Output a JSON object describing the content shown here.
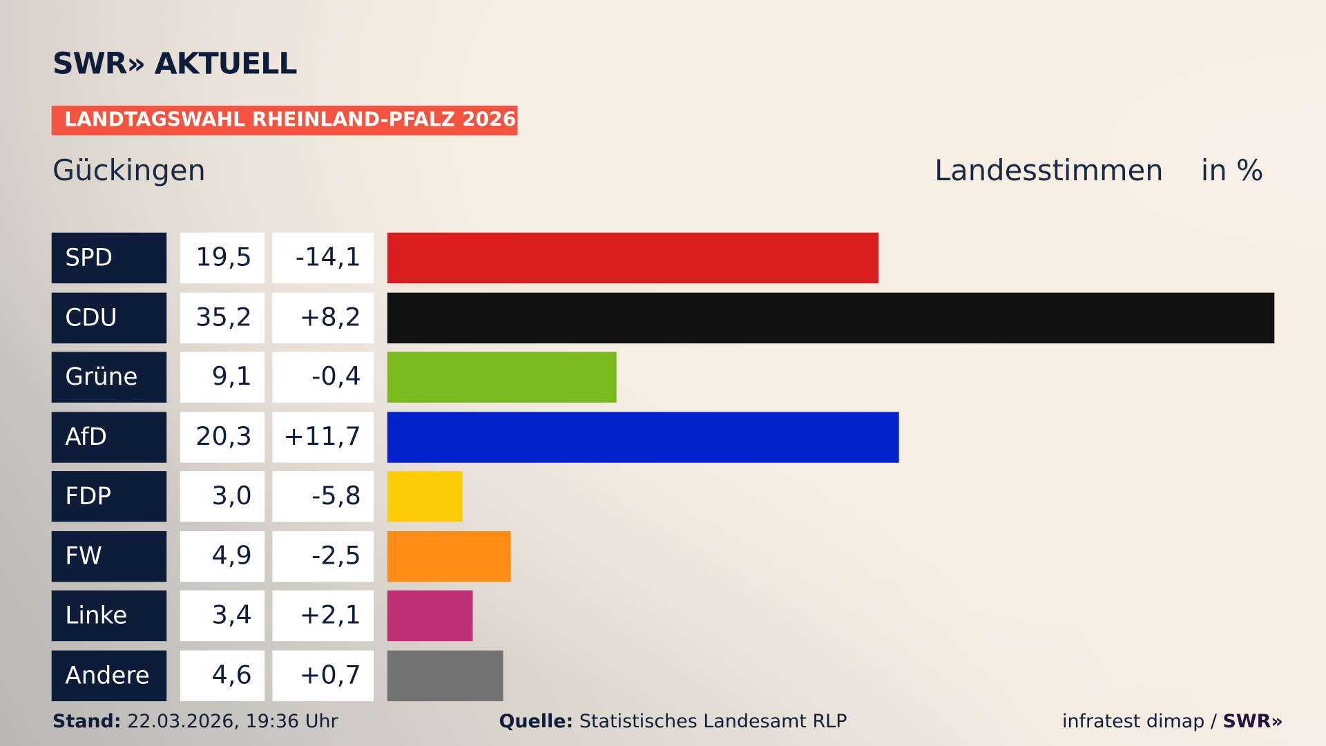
{
  "header": {
    "logo": "SWR» AKTUELL",
    "banner": "LANDTAGSWAHL RHEINLAND-PFALZ 2026",
    "place": "Gückingen",
    "measure": "Landesstimmen",
    "unit": "in %"
  },
  "chart_data": {
    "type": "bar",
    "orientation": "horizontal",
    "categories": [
      "SPD",
      "CDU",
      "Grüne",
      "AfD",
      "FDP",
      "FW",
      "Linke",
      "Andere"
    ],
    "values": [
      19.5,
      35.2,
      9.1,
      20.3,
      3.0,
      4.9,
      3.4,
      4.6
    ],
    "value_labels": [
      "19,5",
      "35,2",
      "9,1",
      "20,3",
      "3,0",
      "4,9",
      "3,4",
      "4,6"
    ],
    "diff_labels": [
      "-14,1",
      "+8,2",
      "-0,4",
      "+11,7",
      "-5,8",
      "-2,5",
      "+2,1",
      "+0,7"
    ],
    "colors": [
      "#d81f1f",
      "#111111",
      "#7aba1e",
      "#0022c8",
      "#ffcc0a",
      "#ff8c17",
      "#be3075",
      "#737373"
    ],
    "xlim": [
      0,
      35.2
    ]
  },
  "footer": {
    "stand_label": "Stand:",
    "stand": "22.03.2026, 19:36 Uhr",
    "source_label": "Quelle:",
    "source": "Statistisches Landesamt RLP",
    "credit": "infratest dimap / ",
    "credit_logo": "SWR»"
  }
}
